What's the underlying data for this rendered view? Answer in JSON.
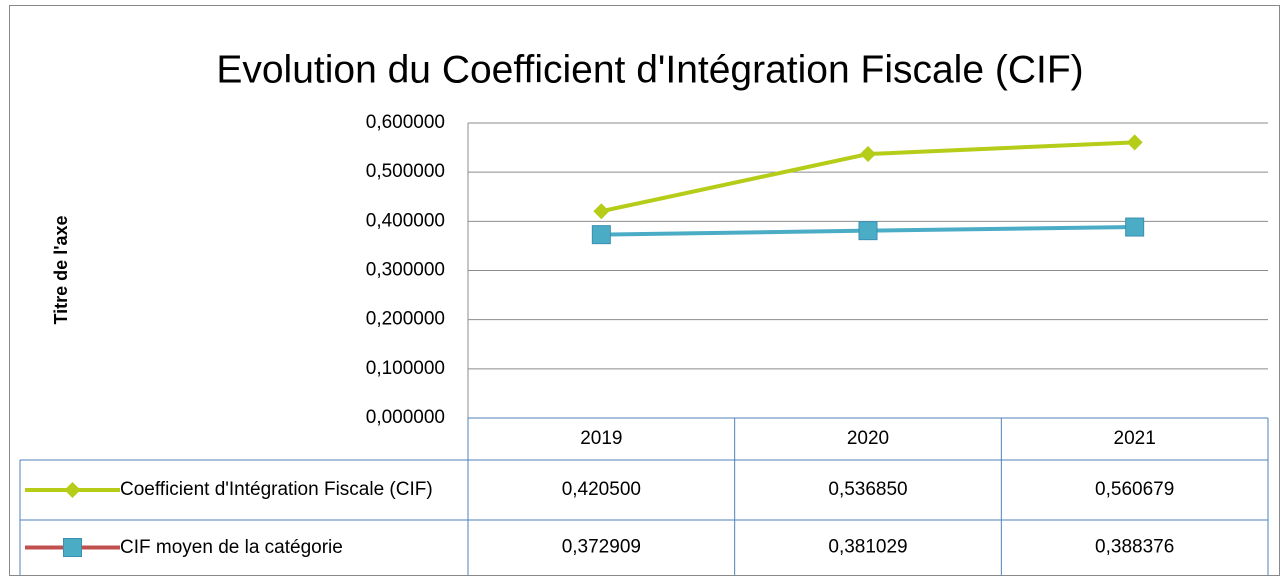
{
  "chart_data": {
    "type": "line",
    "title": "Evolution du Coefficient d'Intégration Fiscale (CIF)",
    "y_axis_label": "Titre de l'axe",
    "categories": [
      "2019",
      "2020",
      "2021"
    ],
    "series": [
      {
        "name": "Coefficient d'Intégration Fiscale (CIF)",
        "color": "#b5cc18",
        "marker": "diamond",
        "values": [
          0.4205,
          0.53685,
          0.560679
        ],
        "value_labels": [
          "0,420500",
          "0,536850",
          "0,560679"
        ]
      },
      {
        "name": "CIF moyen de la catégorie",
        "color": "#4bacc6",
        "legend_line_color": "#c0504d",
        "marker": "square",
        "values": [
          0.372909,
          0.381029,
          0.388376
        ],
        "value_labels": [
          "0,372909",
          "0,381029",
          "0,388376"
        ]
      }
    ],
    "ylim": [
      0,
      0.6
    ],
    "yticks": [
      {
        "value": 0,
        "label": "0,000000"
      },
      {
        "value": 0.1,
        "label": "0,100000"
      },
      {
        "value": 0.2,
        "label": "0,200000"
      },
      {
        "value": 0.3,
        "label": "0,300000"
      },
      {
        "value": 0.4,
        "label": "0,400000"
      },
      {
        "value": 0.5,
        "label": "0,500000"
      },
      {
        "value": 0.6,
        "label": "0,600000"
      }
    ],
    "grid": true,
    "data_table": true
  }
}
